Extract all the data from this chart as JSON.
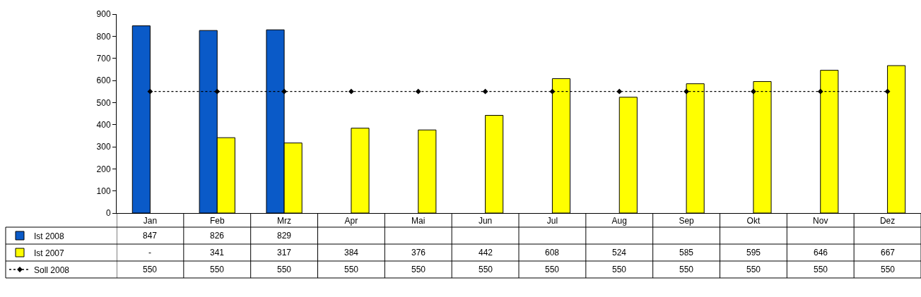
{
  "chart_data": {
    "type": "bar",
    "categories": [
      "Jan",
      "Feb",
      "Mrz",
      "Apr",
      "Mai",
      "Jun",
      "Jul",
      "Aug",
      "Sep",
      "Okt",
      "Nov",
      "Dez"
    ],
    "series": [
      {
        "name": "Ist 2008",
        "color": "#0a5ac8",
        "values": [
          847,
          826,
          829,
          null,
          null,
          null,
          null,
          null,
          null,
          null,
          null,
          null
        ],
        "value_labels": [
          "847",
          "826",
          "829",
          null,
          null,
          null,
          null,
          null,
          null,
          null,
          null,
          null
        ]
      },
      {
        "name": "Ist 2007",
        "color": "#ffff00",
        "values": [
          null,
          341,
          317,
          384,
          376,
          442,
          608,
          524,
          585,
          595,
          646,
          667
        ],
        "value_labels": [
          "-",
          "341",
          "317",
          "384",
          "376",
          "442",
          "608",
          "524",
          "585",
          "595",
          "646",
          "667"
        ]
      },
      {
        "name": "Soll 2008",
        "type": "line",
        "color": "#000000",
        "marker": "diamond",
        "line_style": "dotted",
        "values": [
          550,
          550,
          550,
          550,
          550,
          550,
          550,
          550,
          550,
          550,
          550,
          550
        ],
        "value_labels": [
          "550",
          "550",
          "550",
          "550",
          "550",
          "550",
          "550",
          "550",
          "550",
          "550",
          "550",
          "550"
        ]
      }
    ],
    "ylim": [
      0,
      900
    ],
    "yticks": [
      0,
      100,
      200,
      300,
      400,
      500,
      600,
      700,
      800,
      900
    ],
    "grid": false,
    "legend": "bottom",
    "data_labels": true
  }
}
